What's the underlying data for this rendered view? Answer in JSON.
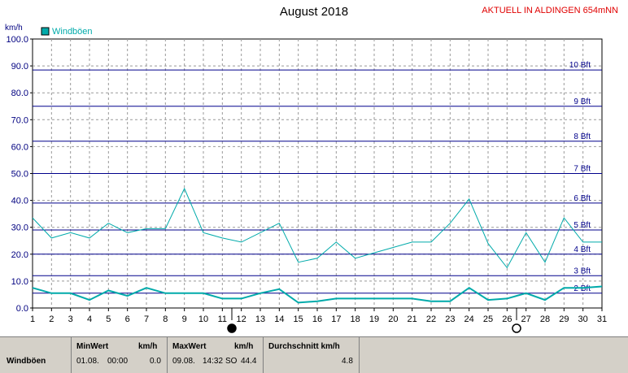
{
  "header": {
    "title": "August 2018",
    "station": "AKTUELL IN ALDINGEN 654mNN"
  },
  "chart_data": {
    "type": "line",
    "title": "August 2018",
    "ylabel": "km/h",
    "ylim": [
      0,
      100
    ],
    "yticks": [
      "0.0",
      "10.0",
      "20.0",
      "30.0",
      "40.0",
      "50.0",
      "60.0",
      "70.0",
      "80.0",
      "90.0",
      "100.0"
    ],
    "x": [
      1,
      2,
      3,
      4,
      5,
      6,
      7,
      8,
      9,
      10,
      11,
      12,
      13,
      14,
      15,
      16,
      17,
      18,
      19,
      20,
      21,
      22,
      23,
      24,
      25,
      26,
      27,
      28,
      29,
      30,
      31
    ],
    "xticks": [
      "1",
      "2",
      "3",
      "4",
      "5",
      "6",
      "7",
      "8",
      "9",
      "10",
      "11",
      "12",
      "13",
      "14",
      "15",
      "16",
      "17",
      "18",
      "19",
      "20",
      "21",
      "22",
      "23",
      "24",
      "25",
      "26",
      "27",
      "28",
      "29",
      "30",
      "31"
    ],
    "series": [
      {
        "name": "Windböen",
        "color": "#00aaaa",
        "values": [
          33.5,
          26,
          28,
          26,
          31.5,
          28,
          29.5,
          29.5,
          44.4,
          28,
          26,
          24.5,
          28,
          31.5,
          17,
          18.5,
          24.5,
          18.5,
          20.5,
          22.5,
          24.5,
          24.5,
          31.5,
          40.5,
          24,
          15,
          28,
          17,
          33.5,
          24.5,
          24.5
        ]
      },
      {
        "color": "#00aaaa",
        "values": [
          7.5,
          5.5,
          5.5,
          3,
          6.5,
          4.5,
          7.5,
          5.5,
          5.5,
          5.5,
          3.5,
          3.5,
          5.5,
          7,
          2,
          2.5,
          3.5,
          3.5,
          3.5,
          3.5,
          3.5,
          2.5,
          2.5,
          7.5,
          3,
          3.5,
          5.5,
          3,
          7.5,
          7.5,
          8
        ]
      }
    ],
    "beaufort": [
      {
        "label": "2 Bft",
        "value": 5.5
      },
      {
        "label": "3 Bft",
        "value": 12
      },
      {
        "label": "4 Bft",
        "value": 20
      },
      {
        "label": "5 Bft",
        "value": 29
      },
      {
        "label": "6 Bft",
        "value": 39
      },
      {
        "label": "7 Bft",
        "value": 50
      },
      {
        "label": "8 Bft",
        "value": 62
      },
      {
        "label": "9 Bft",
        "value": 75
      },
      {
        "label": "10 Bft",
        "value": 88.5
      }
    ],
    "moon_phases": [
      {
        "phase": "new",
        "day": 11.5
      },
      {
        "phase": "full",
        "day": 26.5
      }
    ],
    "legend": "top-left",
    "grid": true,
    "colors": {
      "series": "#00aaaa",
      "beaufort": "#00008b",
      "grid": "#999999",
      "tick_label": "#000080"
    }
  },
  "stats": {
    "row_label": "Windböen",
    "min_header": "MinWert",
    "min_unit": "km/h",
    "min_date": "01.08.",
    "min_time": "00:00",
    "min_value": "0.0",
    "max_header": "MaxWert",
    "max_unit": "km/h",
    "max_date": "09.08.",
    "max_time": "14:32",
    "max_dir": "SO",
    "max_value": "44.4",
    "avg_header": "Durchschnitt km/h",
    "avg_value": "4.8"
  }
}
